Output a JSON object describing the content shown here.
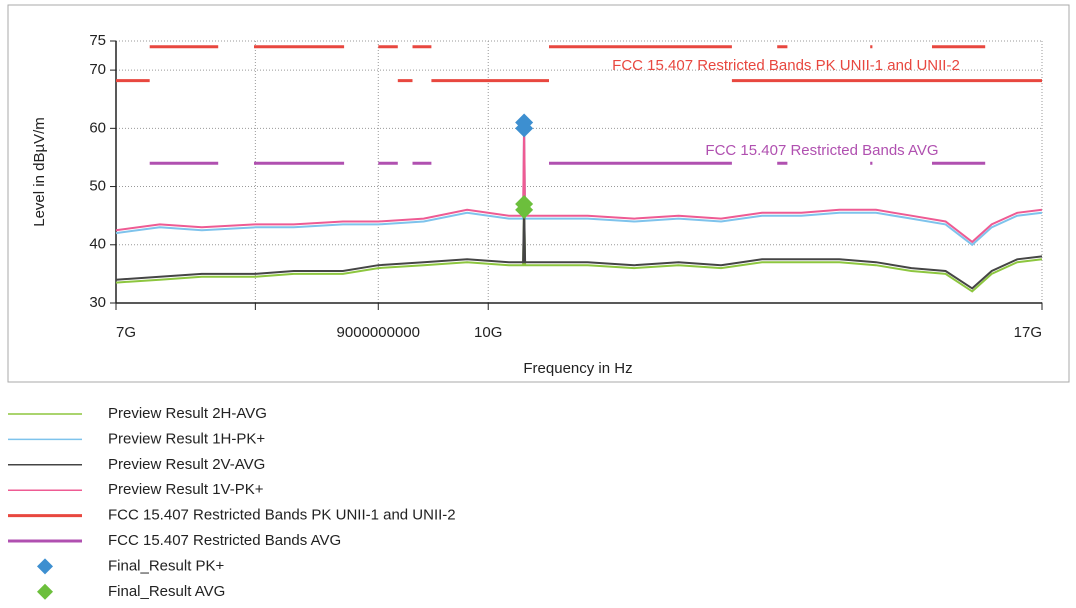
{
  "chart_data": {
    "type": "line",
    "ylabel": "Level in dBµV/m",
    "xlabel": "Frequency in Hz",
    "xscale": "log",
    "grid": true,
    "xlim": [
      7000000000.0,
      17000000000.0
    ],
    "ylim": [
      30,
      75
    ],
    "xticks": [
      {
        "value": 7000000000.0,
        "label": "7G"
      },
      {
        "value": 8000000000.0,
        "label": null
      },
      9000000000.0,
      {
        "value": 10000000000.0,
        "label": "10G"
      },
      {
        "value": 17000000000.0,
        "label": "17G"
      }
    ],
    "yticks": [
      30,
      40,
      50,
      60,
      70,
      75
    ],
    "annotations": [
      "FCC 15.407 Restricted Bands PK UNII-1 and UNII-2",
      "FCC 15.407 Restricted Bands AVG"
    ],
    "series": [
      {
        "name": "Preview Result 2H-AVG",
        "color": "#8dc63f",
        "style": "line",
        "x": [
          7000000000.0,
          7300000000.0,
          7600000000.0,
          8000000000.0,
          8300000000.0,
          8700000000.0,
          9000000000.0,
          9400000000.0,
          9800000000.0,
          10200000000.0,
          10340000000.0,
          10350000000.0,
          10360000000.0,
          10500000000.0,
          11000000000.0,
          11500000000.0,
          12000000000.0,
          12500000000.0,
          13000000000.0,
          13500000000.0,
          14000000000.0,
          14500000000.0,
          15000000000.0,
          15500000000.0,
          15900000000.0,
          16200000000.0,
          16600000000.0,
          17000000000.0
        ],
        "values": [
          33.5,
          34,
          34.5,
          34.5,
          35,
          35,
          36,
          36.5,
          37,
          36.5,
          36.5,
          46.5,
          36.5,
          36.5,
          36.5,
          36,
          36.5,
          36,
          37,
          37,
          37,
          36.5,
          35.5,
          35,
          32,
          35,
          37,
          37.5
        ]
      },
      {
        "name": "Preview Result 1H-PK+",
        "color": "#7ec3ec",
        "style": "line",
        "x": [
          7000000000.0,
          7300000000.0,
          7600000000.0,
          8000000000.0,
          8300000000.0,
          8700000000.0,
          9000000000.0,
          9400000000.0,
          9800000000.0,
          10200000000.0,
          10340000000.0,
          10350000000.0,
          10360000000.0,
          10500000000.0,
          11000000000.0,
          11500000000.0,
          12000000000.0,
          12500000000.0,
          13000000000.0,
          13500000000.0,
          14000000000.0,
          14500000000.0,
          15000000000.0,
          15500000000.0,
          15900000000.0,
          16200000000.0,
          16600000000.0,
          17000000000.0
        ],
        "values": [
          42,
          43,
          42.5,
          43,
          43,
          43.5,
          43.5,
          44,
          45.5,
          44.5,
          44.5,
          60.5,
          44.5,
          44.5,
          44.5,
          44,
          44.5,
          44,
          45,
          45,
          45.5,
          45.5,
          44.5,
          43.5,
          40,
          43,
          45,
          45.5
        ]
      },
      {
        "name": "Preview Result 2V-AVG",
        "color": "#454545",
        "style": "line",
        "x": [
          7000000000.0,
          7300000000.0,
          7600000000.0,
          8000000000.0,
          8300000000.0,
          8700000000.0,
          9000000000.0,
          9400000000.0,
          9800000000.0,
          10200000000.0,
          10340000000.0,
          10350000000.0,
          10360000000.0,
          10500000000.0,
          11000000000.0,
          11500000000.0,
          12000000000.0,
          12500000000.0,
          13000000000.0,
          13500000000.0,
          14000000000.0,
          14500000000.0,
          15000000000.0,
          15500000000.0,
          15900000000.0,
          16200000000.0,
          16600000000.0,
          17000000000.0
        ],
        "values": [
          34,
          34.5,
          35,
          35,
          35.5,
          35.5,
          36.5,
          37,
          37.5,
          37,
          37,
          47,
          37,
          37,
          37,
          36.5,
          37,
          36.5,
          37.5,
          37.5,
          37.5,
          37,
          36,
          35.5,
          32.5,
          35.5,
          37.5,
          38
        ]
      },
      {
        "name": "Preview Result 1V-PK+",
        "color": "#ee5b93",
        "style": "line",
        "x": [
          7000000000.0,
          7300000000.0,
          7600000000.0,
          8000000000.0,
          8300000000.0,
          8700000000.0,
          9000000000.0,
          9400000000.0,
          9800000000.0,
          10200000000.0,
          10340000000.0,
          10350000000.0,
          10360000000.0,
          10500000000.0,
          11000000000.0,
          11500000000.0,
          12000000000.0,
          12500000000.0,
          13000000000.0,
          13500000000.0,
          14000000000.0,
          14500000000.0,
          15000000000.0,
          15500000000.0,
          15900000000.0,
          16200000000.0,
          16600000000.0,
          17000000000.0
        ],
        "values": [
          42.5,
          43.5,
          43,
          43.5,
          43.5,
          44,
          44,
          44.5,
          46,
          45,
          45,
          61,
          45,
          45,
          45,
          44.5,
          45,
          44.5,
          45.5,
          45.5,
          46,
          46,
          45,
          44,
          40.5,
          43.5,
          45.5,
          46
        ]
      },
      {
        "name": "FCC 15.407 Restricted Bands PK UNII-1 and UNII-2",
        "color": "#e8473f",
        "style": "limit",
        "x": [
          7000000000.0,
          7230000000.0,
          null,
          7230000000.0,
          7720000000.0,
          null,
          7990000000.0,
          8710000000.0,
          null,
          9000000000.0,
          9170000000.0,
          null,
          9170000000.0,
          9300000000.0,
          null,
          9300000000.0,
          9470000000.0,
          null,
          9470000000.0,
          10600000000.0,
          null,
          10600000000.0,
          12630000000.0,
          null,
          12630000000.0,
          17000000000.0,
          null,
          13190000000.0,
          13320000000.0,
          null,
          14420000000.0,
          14450000000.0,
          null,
          15300000000.0,
          16100000000.0
        ],
        "values": [
          68.2,
          68.2,
          null,
          74,
          74,
          null,
          74,
          74,
          null,
          74,
          74,
          null,
          68.2,
          68.2,
          null,
          74,
          74,
          null,
          68.2,
          68.2,
          null,
          74,
          74,
          null,
          68.2,
          68.2,
          null,
          74,
          74,
          null,
          74,
          74,
          null,
          74,
          74
        ]
      },
      {
        "name": "FCC 15.407 Restricted Bands AVG",
        "color": "#b050b0",
        "style": "limit",
        "x": [
          7230000000.0,
          7720000000.0,
          null,
          7990000000.0,
          8710000000.0,
          null,
          9000000000.0,
          9170000000.0,
          null,
          9300000000.0,
          9470000000.0,
          null,
          10600000000.0,
          12630000000.0,
          null,
          13190000000.0,
          13320000000.0,
          null,
          14420000000.0,
          14450000000.0,
          null,
          15300000000.0,
          16100000000.0
        ],
        "values": [
          54,
          54,
          null,
          54,
          54,
          null,
          54,
          54,
          null,
          54,
          54,
          null,
          54,
          54,
          null,
          54,
          54,
          null,
          54,
          54,
          null,
          54,
          54
        ]
      },
      {
        "name": "Final_Result PK+",
        "color": "#3d8fd0",
        "style": "marker",
        "x": [
          10350000000.0,
          10350000000.0
        ],
        "values": [
          61,
          60
        ]
      },
      {
        "name": "Final_Result AVG",
        "color": "#6cbf3c",
        "style": "marker",
        "x": [
          10350000000.0,
          10350000000.0
        ],
        "values": [
          47,
          46
        ]
      }
    ]
  }
}
